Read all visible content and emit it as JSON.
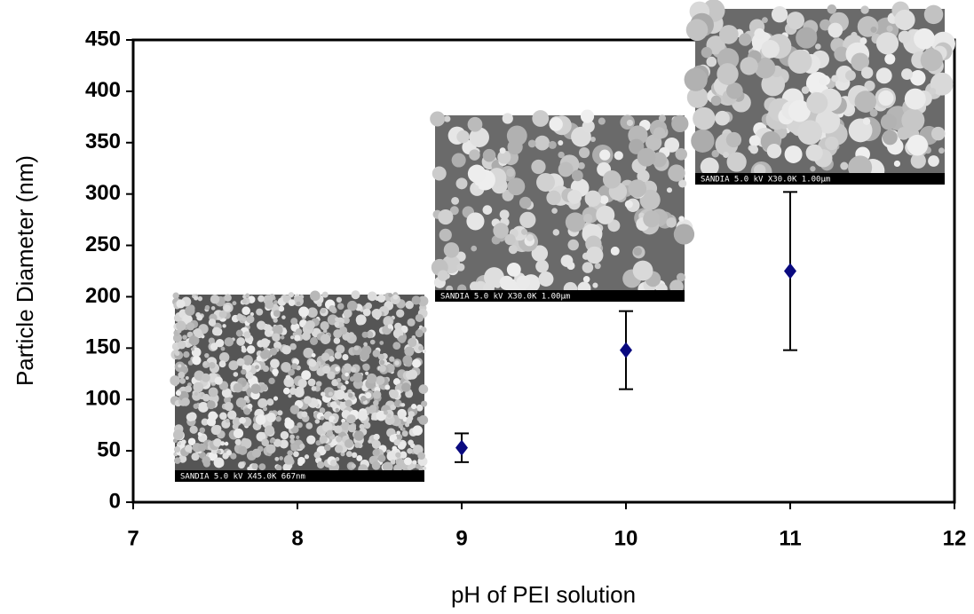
{
  "chart_data": {
    "type": "scatter",
    "x_label": "pH of PEI solution",
    "y_label": "Particle Diameter (nm)",
    "x": [
      9,
      10,
      11
    ],
    "series": [
      {
        "color": "#0a0a80",
        "values": [
          53,
          148,
          225
        ],
        "errors": [
          14,
          38,
          77
        ]
      }
    ],
    "xlim": [
      7,
      12
    ],
    "xticks": [
      7,
      8,
      9,
      10,
      11,
      12
    ],
    "ylim": [
      0,
      450
    ],
    "yticks": [
      0,
      50,
      100,
      150,
      200,
      250,
      300,
      350,
      400,
      450
    ],
    "insets": [
      {
        "caption": "SANDIA 5.0 kV X45.0K 667nm"
      },
      {
        "caption": "SANDIA 5.0 kV X30.0K 1.00µm"
      },
      {
        "caption": "SANDIA 5.0 kV X30.0K 1.00µm"
      }
    ]
  }
}
